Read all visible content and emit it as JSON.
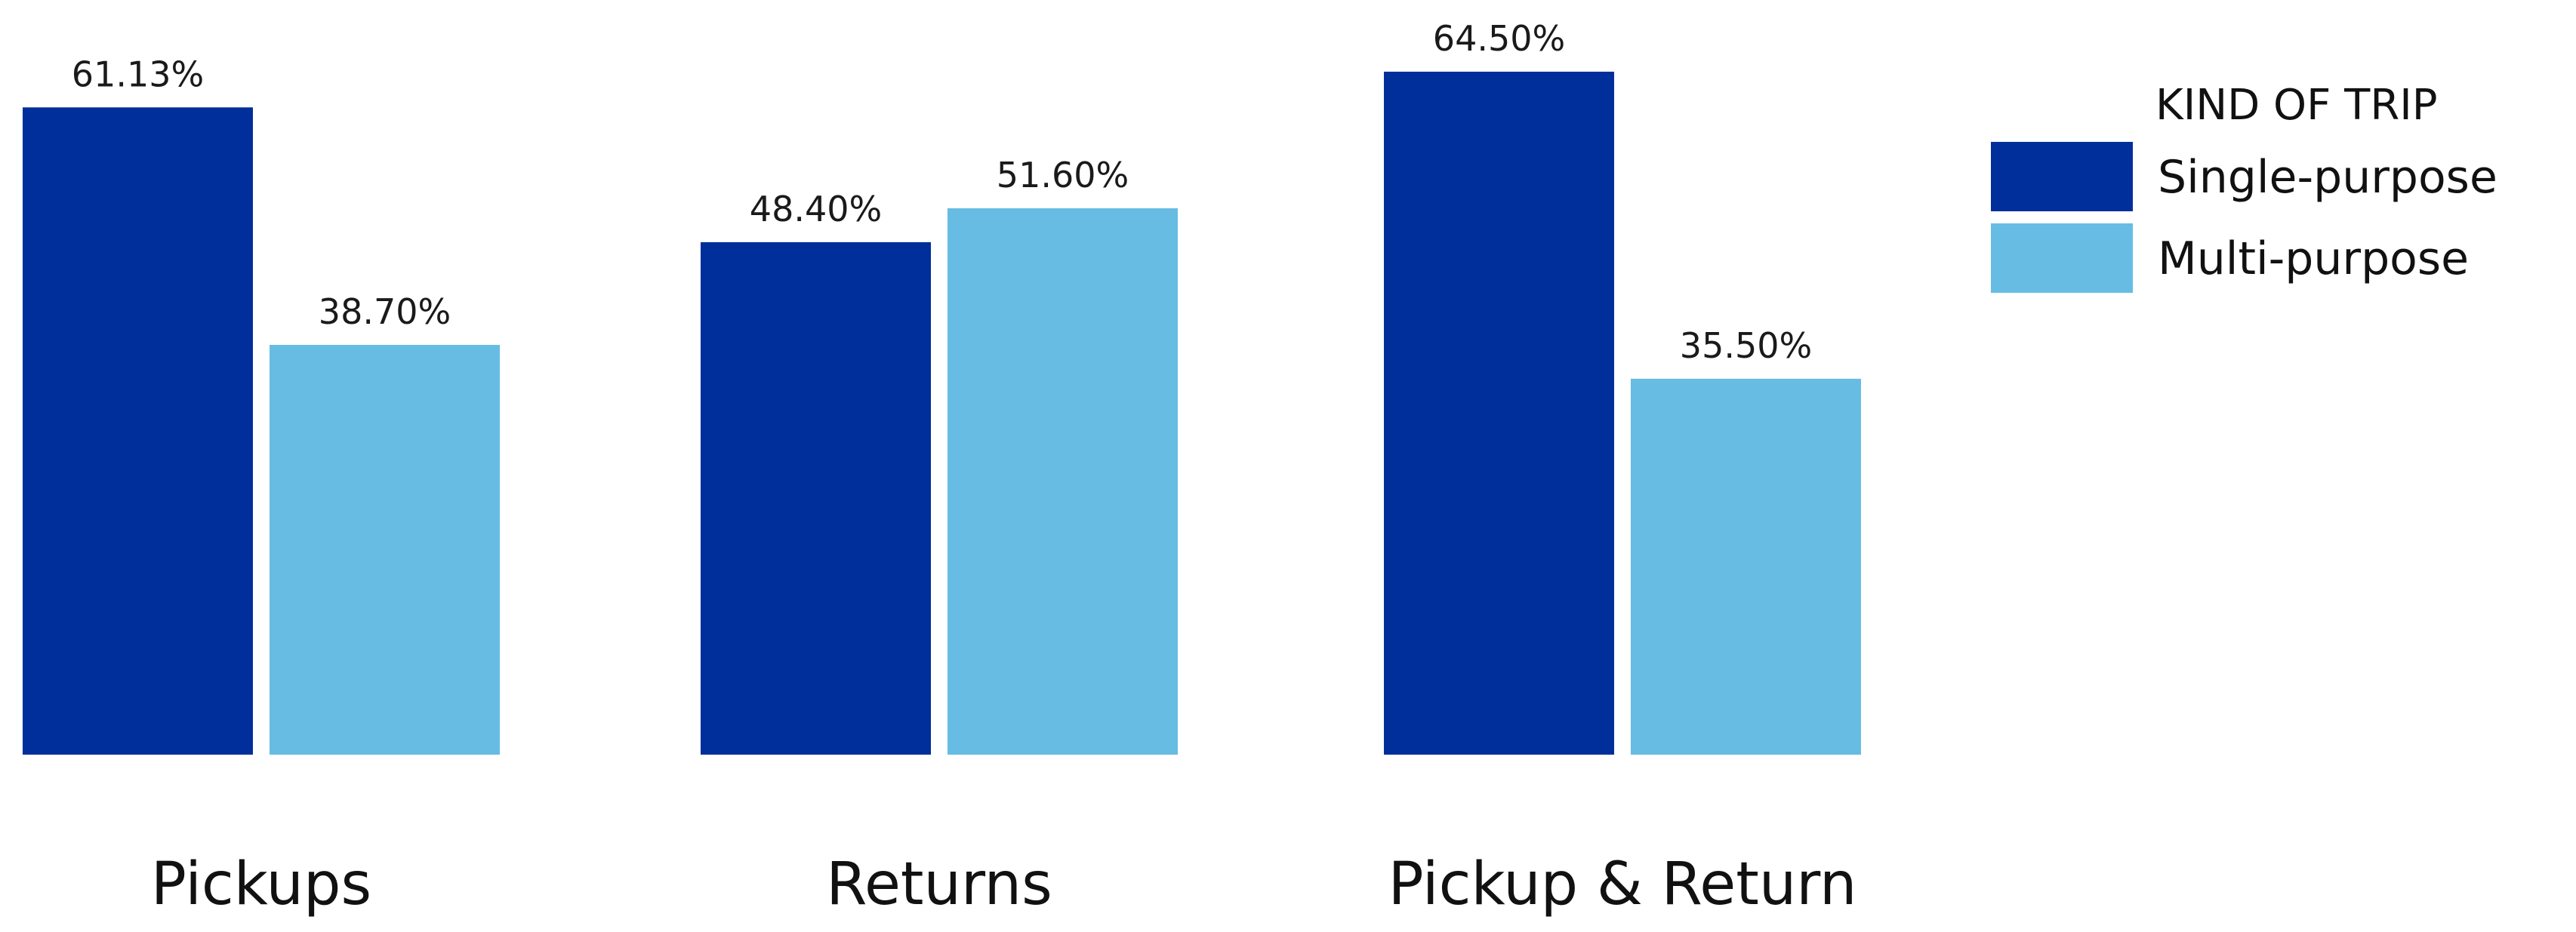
{
  "chart_data": {
    "type": "bar",
    "categories": [
      "Pickups",
      "Returns",
      "Pickup & Return"
    ],
    "series": [
      {
        "name": "Single-purpose",
        "values": [
          61.13,
          48.4,
          64.5
        ],
        "labels": [
          "61.13%",
          "48.40%",
          "64.50%"
        ],
        "color": "#002f9b"
      },
      {
        "name": "Multi-purpose",
        "values": [
          38.7,
          51.6,
          35.5
        ],
        "labels": [
          "38.70%",
          "51.60%",
          "35.50%"
        ],
        "color": "#67bce3"
      }
    ],
    "legend": {
      "title": "KIND OF TRIP",
      "position": "top-right"
    },
    "ylim": [
      0,
      64.5
    ],
    "grid": false,
    "xlabel": "",
    "ylabel": ""
  }
}
